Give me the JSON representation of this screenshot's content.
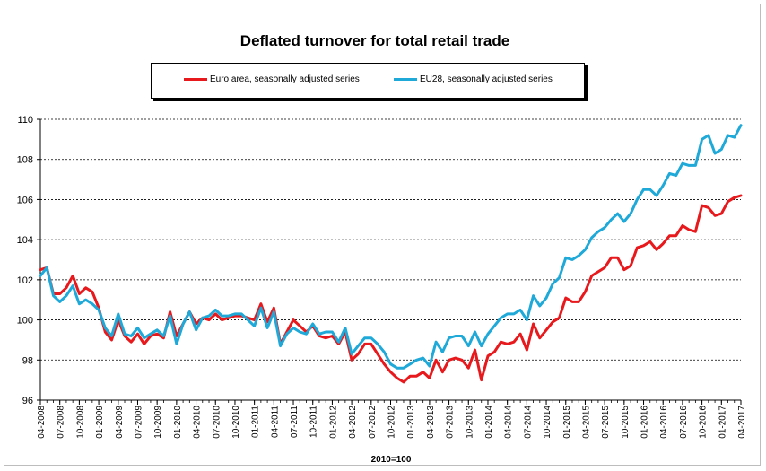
{
  "chart_data": {
    "type": "line",
    "title": "Deflated turnover for total retail trade",
    "xlabel": "2010=100",
    "ylabel": "",
    "ylim": [
      96,
      110
    ],
    "yticks": [
      96,
      98,
      100,
      102,
      104,
      106,
      108,
      110
    ],
    "x_tick_labels": [
      "04-2008",
      "07-2008",
      "10-2008",
      "01-2009",
      "04-2009",
      "07-2009",
      "10-2009",
      "01-2010",
      "04-2010",
      "07-2010",
      "10-2010",
      "01-2011",
      "04-2011",
      "07-2011",
      "10-2011",
      "01-2012",
      "04-2012",
      "07-2012",
      "10-2012",
      "01-2013",
      "04-2013",
      "07-2013",
      "10-2013",
      "01-2014",
      "04-2014",
      "07-2014",
      "10-2014",
      "01-2015",
      "04-2015",
      "07-2015",
      "10-2015",
      "01-2016",
      "04-2016",
      "07-2016",
      "10-2016",
      "01-2017",
      "04-2017"
    ],
    "x_start": "04-2008",
    "x_end": "04-2017",
    "legend_position": "top",
    "series": [
      {
        "name": "Euro area, seasonally adjusted series",
        "color": "#e8191c",
        "values": [
          102.5,
          102.6,
          101.3,
          101.3,
          101.6,
          102.2,
          101.3,
          101.6,
          101.4,
          100.6,
          99.4,
          99.0,
          100.0,
          99.2,
          98.9,
          99.3,
          98.8,
          99.2,
          99.3,
          99.1,
          100.4,
          99.2,
          99.8,
          100.4,
          99.8,
          100.1,
          100.0,
          100.3,
          100.0,
          100.1,
          100.2,
          100.2,
          100.1,
          100.0,
          100.8,
          99.9,
          100.6,
          98.8,
          99.4,
          100.0,
          99.7,
          99.4,
          99.7,
          99.2,
          99.1,
          99.2,
          98.8,
          99.4,
          98.0,
          98.3,
          98.8,
          98.8,
          98.3,
          97.8,
          97.4,
          97.1,
          96.9,
          97.2,
          97.2,
          97.4,
          97.1,
          98.0,
          97.4,
          98.0,
          98.1,
          98.0,
          97.6,
          98.5,
          97.0,
          98.2,
          98.4,
          98.9,
          98.8,
          98.9,
          99.3,
          98.5,
          99.8,
          99.1,
          99.5,
          99.9,
          100.1,
          101.1,
          100.9,
          100.9,
          101.4,
          102.2,
          102.4,
          102.6,
          103.1,
          103.1,
          102.5,
          102.7,
          103.6,
          103.7,
          103.9,
          103.5,
          103.8,
          104.2,
          104.2,
          104.7,
          104.5,
          104.4,
          105.7,
          105.6,
          105.2,
          105.3,
          105.9,
          106.1,
          106.2
        ]
      },
      {
        "name": "EU28, seasonally adjusted series",
        "color": "#1fa9d8",
        "values": [
          102.2,
          102.6,
          101.2,
          100.9,
          101.2,
          101.7,
          100.8,
          101.0,
          100.8,
          100.5,
          99.6,
          99.2,
          100.3,
          99.3,
          99.2,
          99.6,
          99.1,
          99.3,
          99.5,
          99.2,
          100.2,
          98.8,
          99.8,
          100.4,
          99.5,
          100.1,
          100.2,
          100.5,
          100.2,
          100.2,
          100.3,
          100.3,
          100.0,
          99.7,
          100.6,
          99.6,
          100.4,
          98.7,
          99.3,
          99.6,
          99.4,
          99.3,
          99.8,
          99.3,
          99.4,
          99.4,
          98.9,
          99.6,
          98.3,
          98.7,
          99.1,
          99.1,
          98.8,
          98.4,
          97.8,
          97.6,
          97.6,
          97.8,
          98.0,
          98.1,
          97.7,
          98.9,
          98.4,
          99.1,
          99.2,
          99.2,
          98.7,
          99.4,
          98.7,
          99.3,
          99.7,
          100.1,
          100.3,
          100.3,
          100.5,
          100.0,
          101.2,
          100.7,
          101.1,
          101.8,
          102.1,
          103.1,
          103.0,
          103.2,
          103.5,
          104.1,
          104.4,
          104.6,
          105.0,
          105.3,
          104.9,
          105.3,
          106.0,
          106.5,
          106.5,
          106.2,
          106.7,
          107.3,
          107.2,
          107.8,
          107.7,
          107.7,
          109.0,
          109.2,
          108.3,
          108.5,
          109.2,
          109.1,
          109.7
        ]
      }
    ]
  }
}
